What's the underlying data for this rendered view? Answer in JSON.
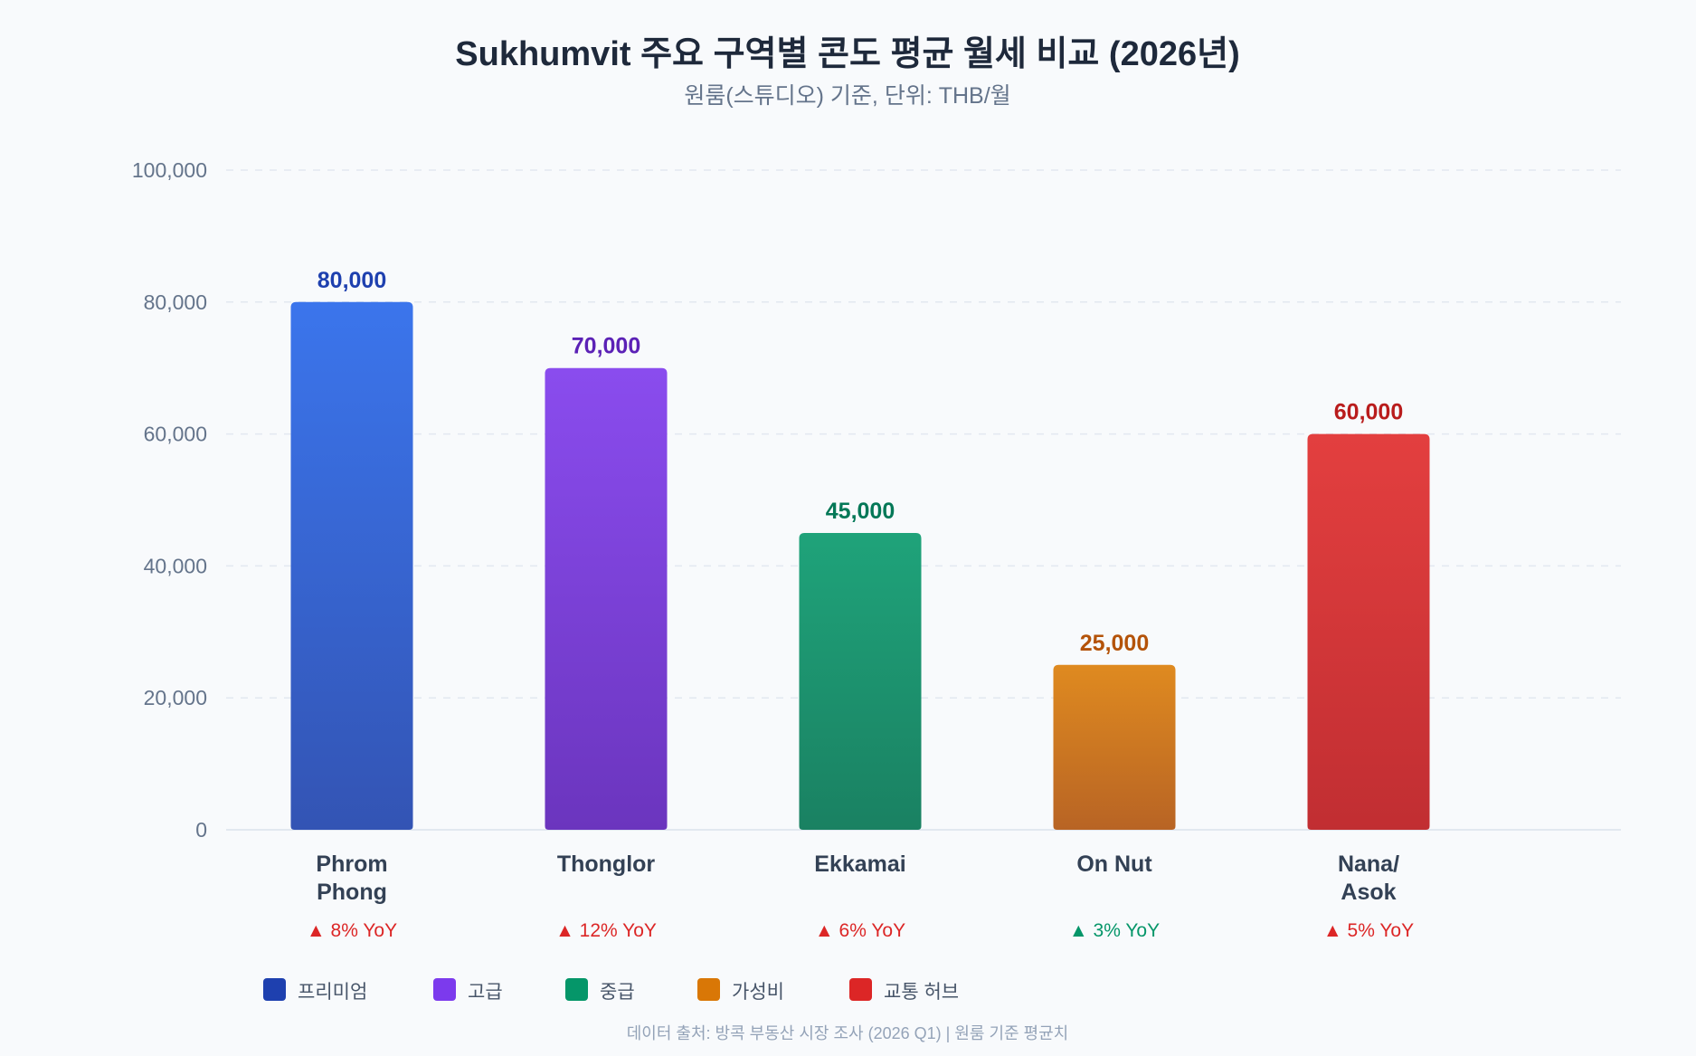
{
  "chart_data": {
    "type": "bar",
    "title": "Sukhumvit 주요 구역별 콘도 평균 월세 비교 (2026년)",
    "subtitle": "원룸(스튜디오) 기준, 단위: THB/월",
    "ylim": [
      0,
      100000
    ],
    "yticks": [
      "0",
      "20,000",
      "40,000",
      "60,000",
      "80,000",
      "100,000"
    ],
    "categories": [
      "Phrom Phong",
      "Thonglor",
      "Ekkamai",
      "On Nut",
      "Nana/ Asok"
    ],
    "category_lines": [
      [
        "Phrom",
        "Phong"
      ],
      [
        "Thonglor"
      ],
      [
        "Ekkamai"
      ],
      [
        "On Nut"
      ],
      [
        "Nana/",
        "Asok"
      ]
    ],
    "values": [
      80000,
      70000,
      45000,
      25000,
      60000
    ],
    "value_labels": [
      "80,000",
      "70,000",
      "45,000",
      "25,000",
      "60,000"
    ],
    "yoy": [
      "▲ 8% YoY",
      "▲ 12% YoY",
      "▲ 6% YoY",
      "▲ 3% YoY",
      "▲ 5% YoY"
    ],
    "yoy_colors": [
      "#dc2626",
      "#dc2626",
      "#dc2626",
      "#059669",
      "#dc2626"
    ],
    "bar_gradients": [
      [
        "#3b75ec",
        "#3354b4"
      ],
      [
        "#8a4cee",
        "#6b35be"
      ],
      [
        "#1fa37a",
        "#1a8162"
      ],
      [
        "#df8a20",
        "#b86424"
      ],
      [
        "#e33f3f",
        "#c12e32"
      ]
    ],
    "label_colors": [
      "#1e40af",
      "#5b21b6",
      "#047857",
      "#b45309",
      "#b91c1c"
    ],
    "grid": true,
    "legend": {
      "position": "bottom-left",
      "items": [
        {
          "label": "프리미엄",
          "color": "#1e40af"
        },
        {
          "label": "고급",
          "color": "#7c3aed"
        },
        {
          "label": "중급",
          "color": "#059669"
        },
        {
          "label": "가성비",
          "color": "#d97706"
        },
        {
          "label": "교통 허브",
          "color": "#dc2626"
        }
      ]
    },
    "source": "데이터 출처: 방콕 부동산 시장 조사 (2026 Q1) | 원룸 기준 평균치"
  }
}
